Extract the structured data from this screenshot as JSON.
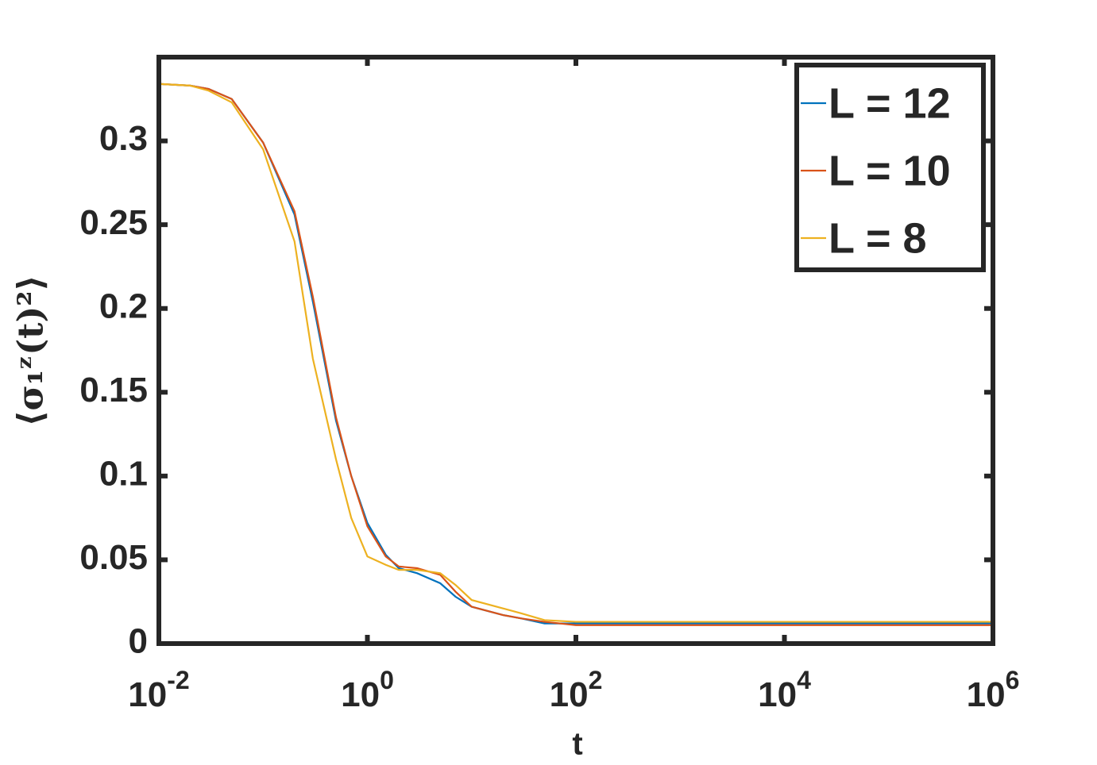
{
  "chart_data": {
    "type": "line",
    "x_label": "t",
    "y_label": "⟨σ₁ᶻ(t)²⟩",
    "x_scale": "log",
    "xlim": [
      0.01,
      1000000
    ],
    "ylim": [
      0,
      0.35
    ],
    "xticks": [
      {
        "value": 0.01,
        "label": "10^-2"
      },
      {
        "value": 1,
        "label": "10^0"
      },
      {
        "value": 100,
        "label": "10^2"
      },
      {
        "value": 10000,
        "label": "10^4"
      },
      {
        "value": 1000000,
        "label": "10^6"
      }
    ],
    "yticks": [
      0,
      0.05,
      0.1,
      0.15,
      0.2,
      0.25,
      0.3
    ],
    "legend": "northeast",
    "x": [
      0.01,
      0.02,
      0.03,
      0.05,
      0.1,
      0.2,
      0.3,
      0.5,
      0.7,
      1,
      1.5,
      2,
      3,
      5,
      7,
      10,
      20,
      30,
      50,
      100,
      1000,
      10000,
      100000,
      1000000
    ],
    "series": [
      {
        "name": "L = 12",
        "color": "#0072BD",
        "values": [
          0.334,
          0.333,
          0.331,
          0.325,
          0.299,
          0.256,
          0.204,
          0.133,
          0.1,
          0.072,
          0.053,
          0.045,
          0.042,
          0.036,
          0.028,
          0.022,
          0.017,
          0.015,
          0.012,
          0.012,
          0.012,
          0.012,
          0.012,
          0.012
        ]
      },
      {
        "name": "L = 10",
        "color": "#D95319",
        "values": [
          0.334,
          0.333,
          0.331,
          0.325,
          0.299,
          0.258,
          0.207,
          0.135,
          0.1,
          0.07,
          0.052,
          0.046,
          0.045,
          0.041,
          0.031,
          0.022,
          0.017,
          0.015,
          0.013,
          0.011,
          0.011,
          0.011,
          0.011,
          0.011
        ]
      },
      {
        "name": "L = 8",
        "color": "#EDB120",
        "values": [
          0.334,
          0.333,
          0.33,
          0.323,
          0.295,
          0.24,
          0.17,
          0.11,
          0.075,
          0.052,
          0.047,
          0.044,
          0.044,
          0.042,
          0.035,
          0.026,
          0.021,
          0.018,
          0.014,
          0.013,
          0.013,
          0.013,
          0.013,
          0.013
        ]
      }
    ]
  }
}
